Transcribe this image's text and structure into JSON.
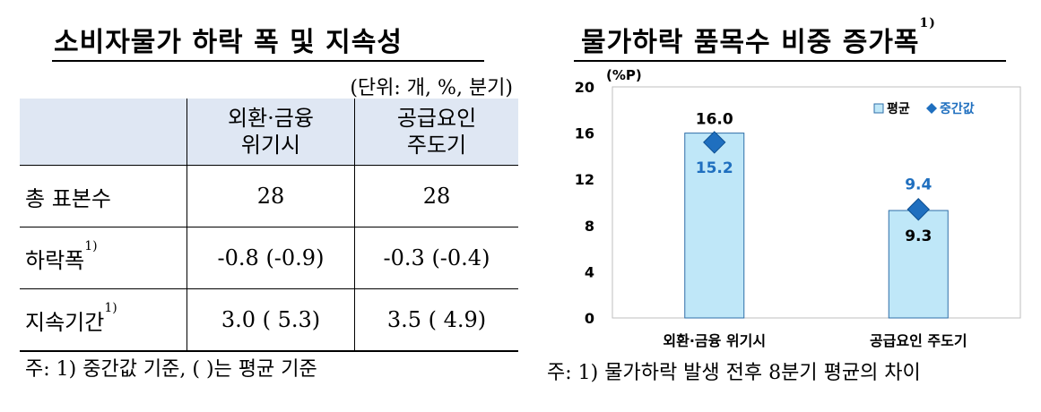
{
  "left": {
    "title": "소비자물가 하락 폭 및 지속성",
    "unit": "(단위: 개, %, 분기)",
    "headers": [
      "",
      "외환·금융\n위기시",
      "공급요인\n주도기"
    ],
    "rows": [
      {
        "label": "총 표본수",
        "sup": "",
        "values": [
          "28",
          "28"
        ]
      },
      {
        "label": "하락폭",
        "sup": "1)",
        "values": [
          "-0.8 (-0.9)",
          "-0.3 (-0.4)"
        ]
      },
      {
        "label": "지속기간",
        "sup": "1)",
        "values": [
          "3.0 ( 5.3)",
          "3.5 ( 4.9)"
        ]
      }
    ],
    "note": "주: 1) 중간값 기준, (     )는 평균 기준"
  },
  "right": {
    "title": "물가하락 품목수 비중 증가폭",
    "title_sup": "1)",
    "note": "주: 1) 물가하락 발생 전후 8분기 평균의 차이"
  },
  "chart_data": {
    "type": "bar",
    "categories": [
      "외환·금융 위기시",
      "공급요인 주도기"
    ],
    "series": [
      {
        "name": "평균",
        "type": "bar",
        "values": [
          16.0,
          9.3
        ],
        "value_labels": [
          "16.0",
          "9.3"
        ],
        "color": "#bfe7f8"
      },
      {
        "name": "중간값",
        "type": "marker",
        "values": [
          15.2,
          9.4
        ],
        "value_labels": [
          "15.2",
          "9.4"
        ],
        "color": "#1f6fbf"
      }
    ],
    "ylabel": "(%P)",
    "ylim": [
      0,
      20
    ],
    "yticks": [
      "0",
      "4",
      "8",
      "12",
      "16",
      "20"
    ],
    "legend": "top-right",
    "grid": false
  }
}
